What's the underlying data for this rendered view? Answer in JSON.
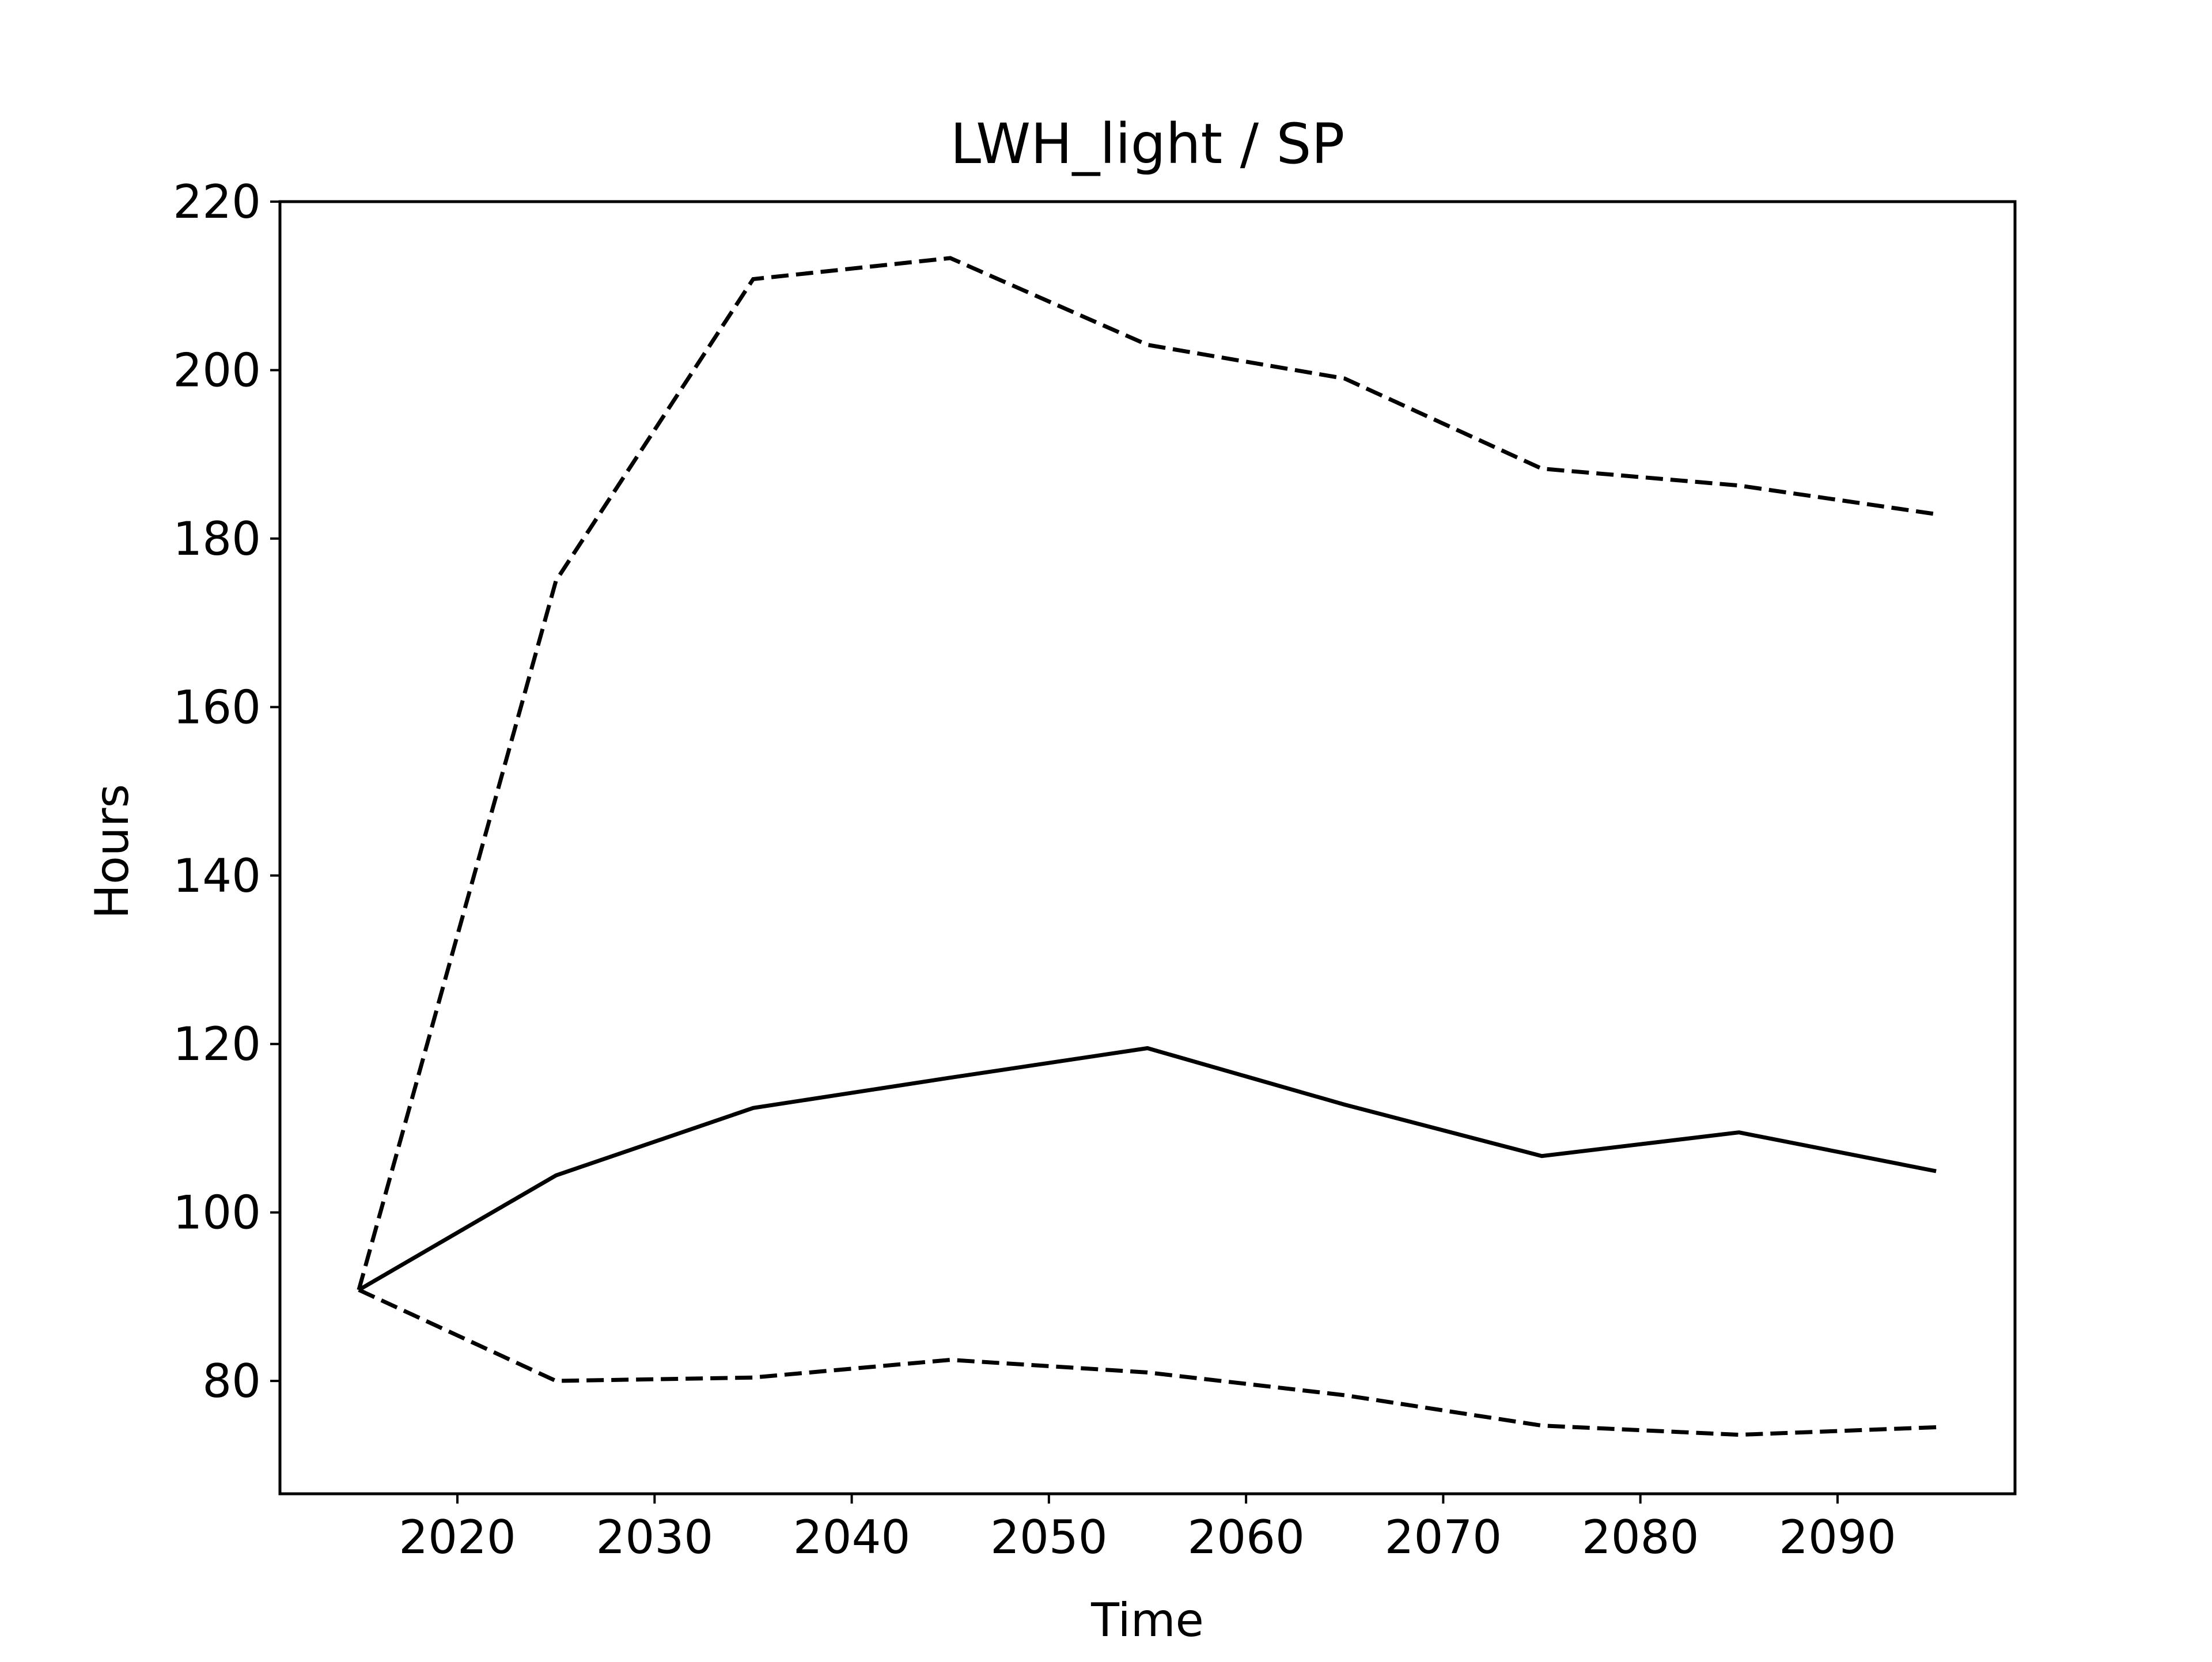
{
  "chart_data": {
    "type": "line",
    "title": "LWH_light / SP",
    "xlabel": "Time",
    "ylabel": "Hours",
    "xlim": [
      2011,
      2099
    ],
    "ylim": [
      66.6,
      220
    ],
    "x_ticks": [
      2020,
      2030,
      2040,
      2050,
      2060,
      2070,
      2080,
      2090
    ],
    "y_ticks": [
      80,
      100,
      120,
      140,
      160,
      180,
      200,
      220
    ],
    "grid": false,
    "legend": "none",
    "x": [
      2015,
      2025,
      2035,
      2045,
      2055,
      2065,
      2075,
      2085,
      2095
    ],
    "series": [
      {
        "style": "solid",
        "color": "#000000",
        "values": [
          90.8,
          104.4,
          112.4,
          116.0,
          119.5,
          112.8,
          106.7,
          109.5,
          104.9
        ]
      },
      {
        "style": "dashed",
        "color": "#000000",
        "values": [
          90.8,
          175.0,
          210.8,
          213.3,
          203.0,
          199.0,
          188.3,
          186.3,
          182.9
        ]
      },
      {
        "style": "dashed",
        "color": "#000000",
        "values": [
          90.8,
          80.0,
          80.4,
          82.5,
          81.0,
          78.3,
          74.7,
          73.6,
          74.5
        ]
      }
    ]
  }
}
